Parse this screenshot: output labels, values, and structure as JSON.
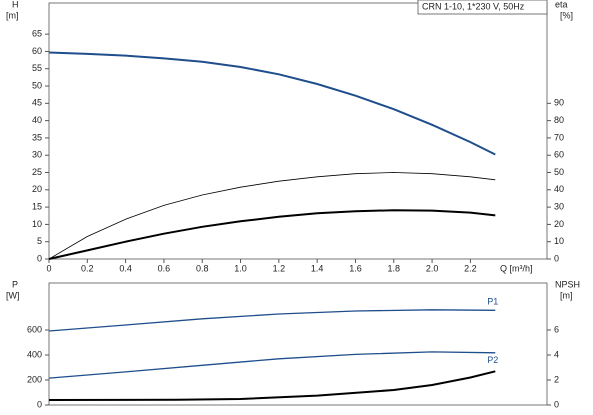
{
  "chart_data": [
    {
      "type": "line",
      "title": "CRN 1-10, 1*230 V, 50Hz",
      "ylabel": "H",
      "yunit": "[m]",
      "y2label": "eta",
      "y2unit": "[%]",
      "xlabel": "Q [m³/h]",
      "xlim": [
        0,
        2.6
      ],
      "ylim": [
        0,
        74
      ],
      "y2lim": [
        0,
        148
      ],
      "xticks": [
        0,
        0.2,
        0.4,
        0.6,
        0.8,
        {
          "value": 1,
          "label": "1.0"
        },
        1.2,
        1.4,
        1.6,
        1.8,
        {
          "value": 2,
          "label": "2.0"
        },
        2.2
      ],
      "yticks": [
        0,
        5,
        10,
        15,
        20,
        25,
        30,
        35,
        40,
        45,
        50,
        55,
        60,
        65
      ],
      "y2ticks": [
        0,
        10,
        20,
        30,
        40,
        50,
        60,
        70,
        80,
        90
      ],
      "series": [
        {
          "color": "#1f4e8c",
          "x": [
            0,
            0.2,
            0.4,
            0.6,
            0.8,
            1.0,
            1.2,
            1.4,
            1.6,
            1.8,
            2.0,
            2.2,
            2.33
          ],
          "values": [
            59.7,
            59.3,
            58.8,
            58.0,
            57.0,
            55.5,
            53.4,
            50.6,
            47.2,
            43.3,
            38.8,
            33.8,
            30.2
          ]
        },
        {
          "color": "#000000",
          "axis": "y2",
          "x": [
            0,
            0.2,
            0.4,
            0.6,
            0.8,
            1.0,
            1.2,
            1.4,
            1.6,
            1.8,
            2.0,
            2.2,
            2.33
          ],
          "values": [
            0,
            13,
            23,
            31,
            37,
            41.5,
            45,
            47.5,
            49.3,
            50,
            49.3,
            47.5,
            45.8
          ]
        },
        {
          "color": "#000000",
          "axis": "y2",
          "x": [
            0,
            0.2,
            0.4,
            0.6,
            0.8,
            1.0,
            1.2,
            1.4,
            1.6,
            1.8,
            2.0,
            2.2,
            2.33
          ],
          "values": [
            0,
            5,
            10,
            14.6,
            18.6,
            21.8,
            24.4,
            26.4,
            27.6,
            28.2,
            28,
            26.8,
            25.2
          ]
        }
      ]
    },
    {
      "type": "line",
      "ylabel": "P",
      "yunit": "[W]",
      "y2label": "NPSH",
      "y2unit": "[m]",
      "xlim": [
        0,
        2.6
      ],
      "ylim": [
        0,
        976
      ],
      "y2lim": [
        0,
        9.76
      ],
      "yticks": [
        0,
        200,
        400,
        600
      ],
      "y2ticks": [
        0,
        2,
        4,
        6
      ],
      "series": [
        {
          "name": "P1",
          "color": "#1f4e8c",
          "x": [
            0,
            0.4,
            0.8,
            1.2,
            1.6,
            2.0,
            2.33
          ],
          "values": [
            592,
            640,
            690,
            728,
            752,
            762,
            758
          ]
        },
        {
          "name": "P2",
          "color": "#1f4e8c",
          "x": [
            0,
            0.4,
            0.8,
            1.2,
            1.6,
            2.0,
            2.33
          ],
          "values": [
            215,
            265,
            318,
            370,
            405,
            425,
            418
          ]
        },
        {
          "color": "#000000",
          "axis": "y2",
          "x": [
            0,
            0.67,
            1.0,
            1.4,
            1.8,
            2.0,
            2.2,
            2.33
          ],
          "values": [
            0.4,
            0.42,
            0.48,
            0.75,
            1.2,
            1.6,
            2.2,
            2.7
          ]
        }
      ]
    }
  ]
}
